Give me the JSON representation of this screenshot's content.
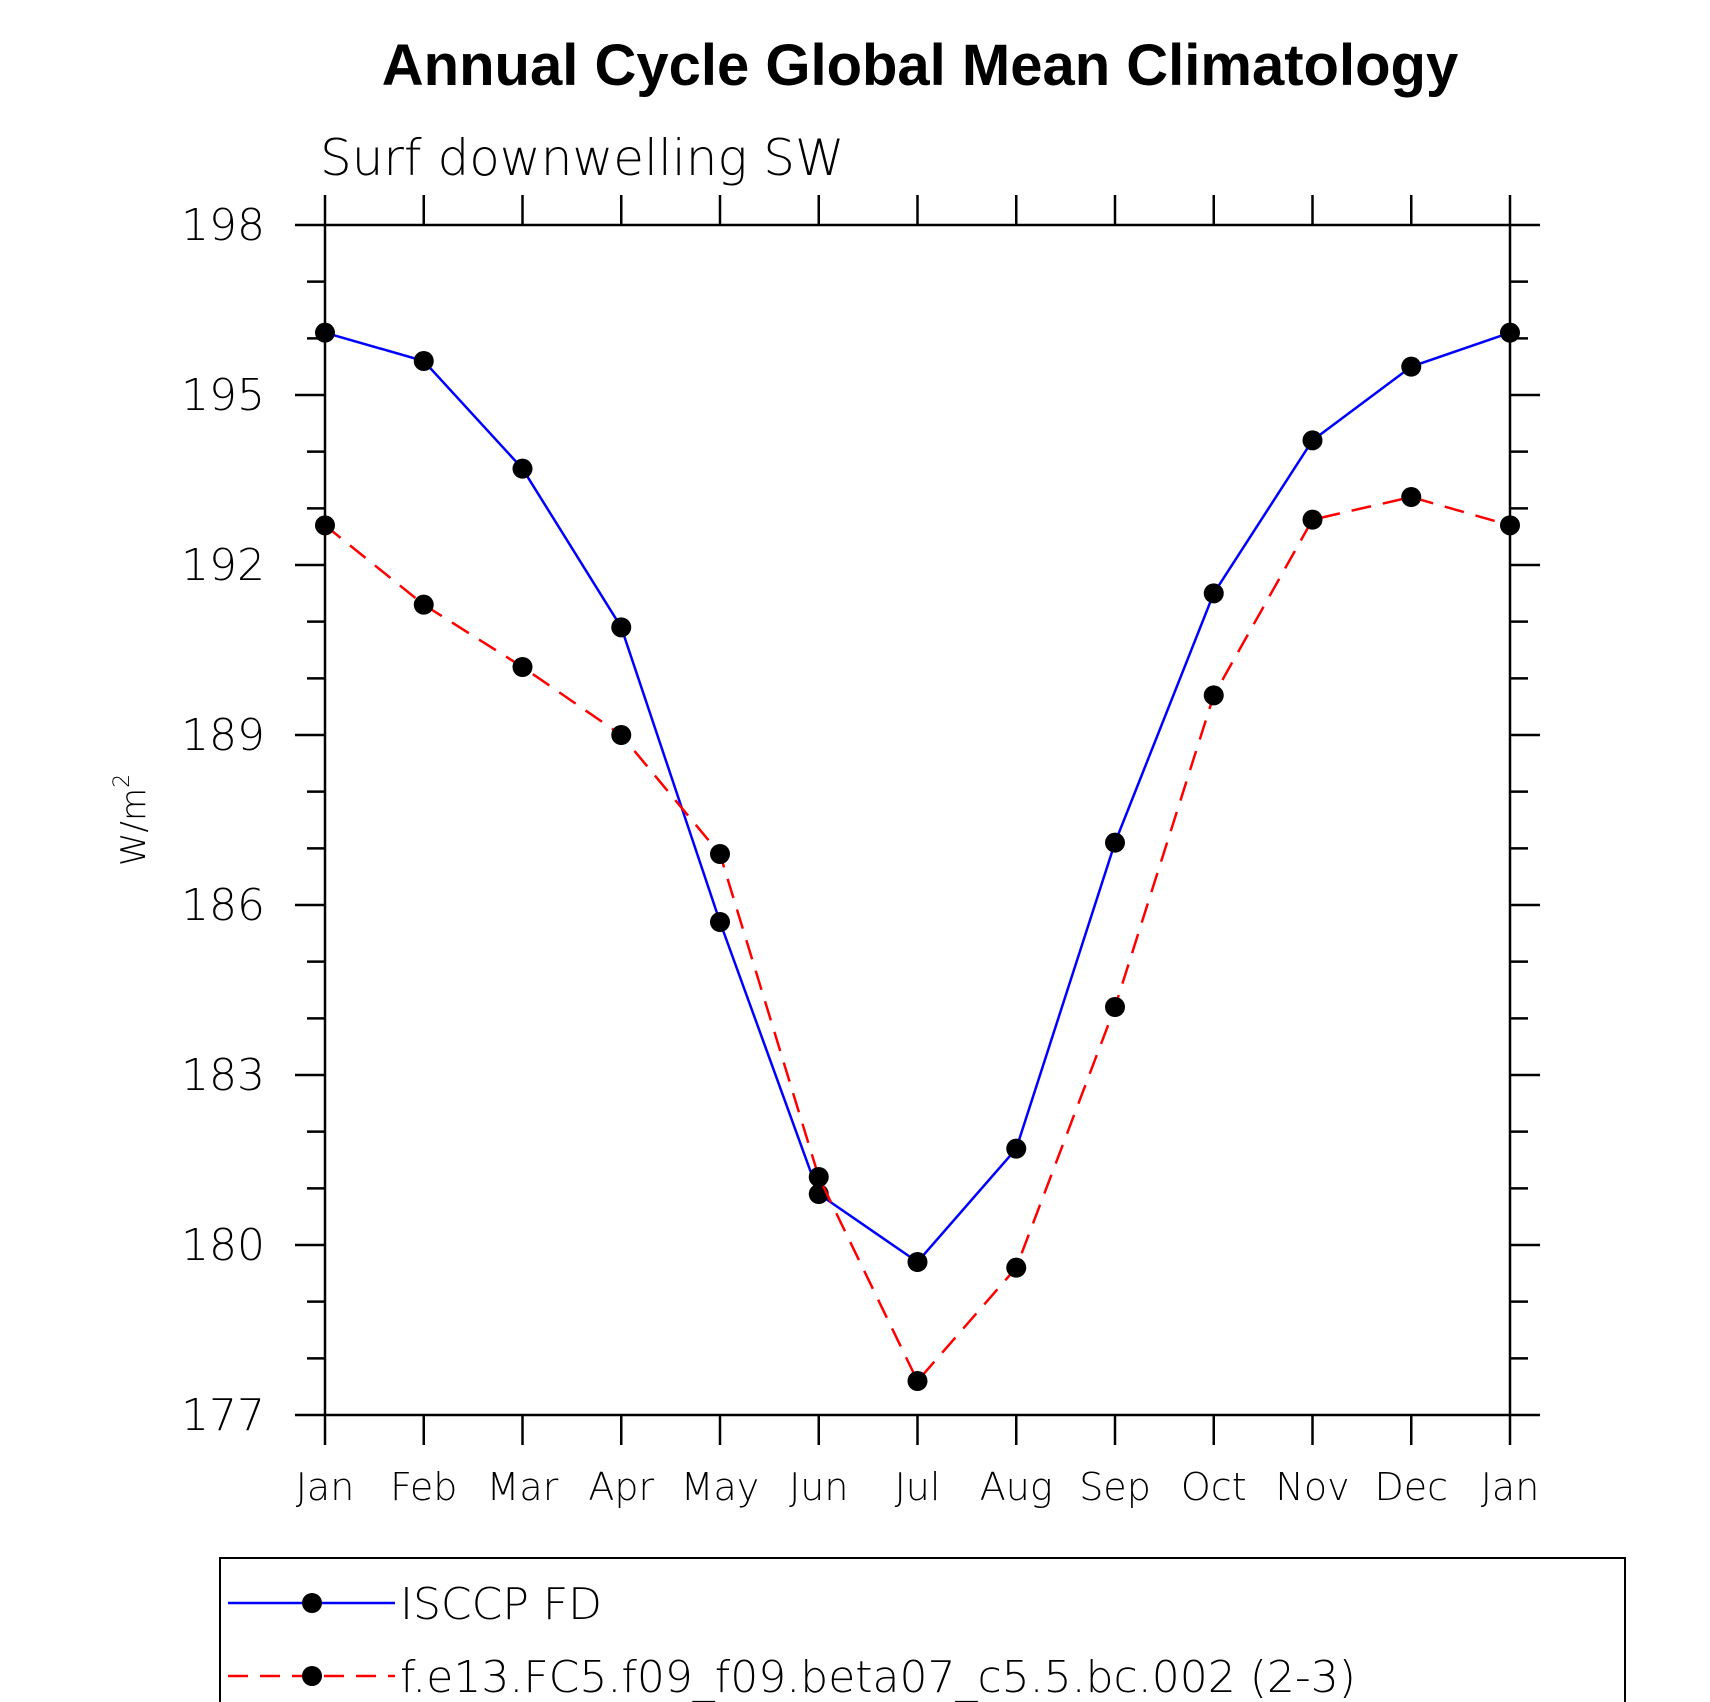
{
  "chart_data": {
    "type": "line",
    "title": "Annual Cycle Global Mean Climatology",
    "subtitle": "Surf downwelling SW",
    "ylabel": "W/m",
    "ylabel_superscript": "2",
    "ylim": [
      177,
      198
    ],
    "yticks": [
      "177",
      "180",
      "183",
      "186",
      "189",
      "192",
      "195",
      "198"
    ],
    "categories": [
      "Jan",
      "Feb",
      "Mar",
      "Apr",
      "May",
      "Jun",
      "Jul",
      "Aug",
      "Sep",
      "Oct",
      "Nov",
      "Dec",
      "Jan"
    ],
    "series": [
      {
        "name": "ISCCP FD",
        "color": "#0000ff",
        "dashed": false,
        "values": [
          196.1,
          195.6,
          193.7,
          190.9,
          185.7,
          180.9,
          179.7,
          181.7,
          187.1,
          191.5,
          194.2,
          195.5,
          196.1
        ]
      },
      {
        "name": "f.e13.FC5.f09_f09.beta07_c5.5.bc.002 (2-3)",
        "color": "#ff0000",
        "dashed": true,
        "values": [
          192.7,
          191.3,
          190.2,
          189.0,
          186.9,
          181.2,
          177.6,
          179.6,
          184.2,
          189.7,
          192.8,
          193.2,
          192.7
        ]
      }
    ],
    "grid": false,
    "legend_position": "bottom"
  }
}
